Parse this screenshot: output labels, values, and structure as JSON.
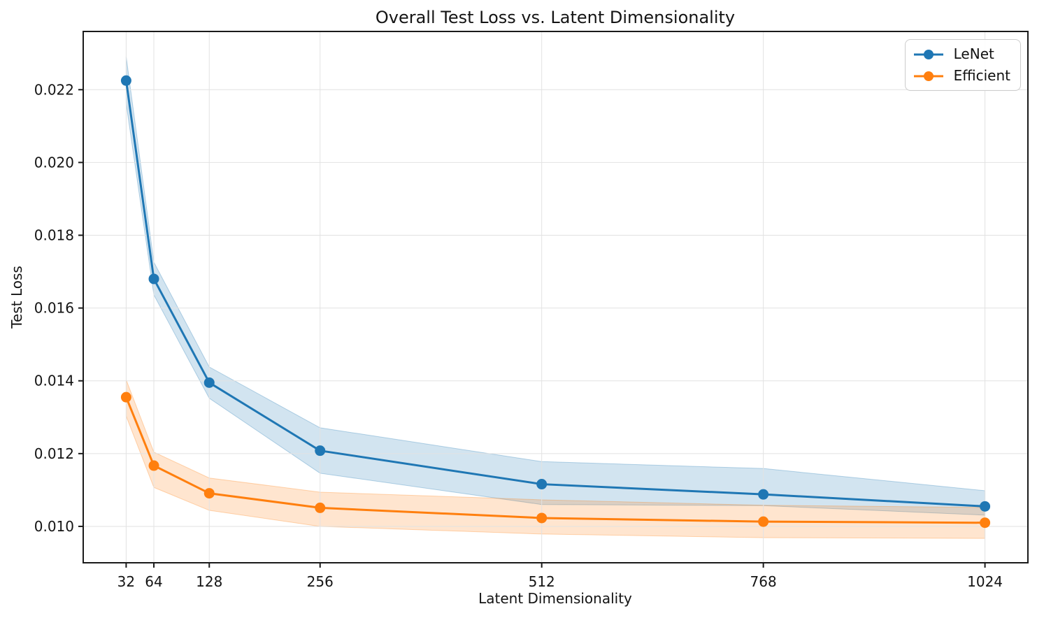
{
  "title": "Overall Test Loss vs. Latent Dimensionality",
  "axes": {
    "x_label": "Latent Dimensionality",
    "y_label": "Test Loss"
  },
  "legend": {
    "position": "upper right",
    "items": [
      "LeNet",
      "Efficient"
    ]
  },
  "chart_data": {
    "type": "line",
    "title": "Overall Test Loss vs. Latent Dimensionality",
    "xlabel": "Latent Dimensionality",
    "ylabel": "Test Loss",
    "x": [
      32,
      64,
      128,
      256,
      512,
      768,
      1024
    ],
    "x_ticks": [
      32,
      64,
      128,
      256,
      512,
      768,
      1024
    ],
    "y_ticks": [
      0.01,
      0.012,
      0.014,
      0.016,
      0.018,
      0.02,
      0.022
    ],
    "xlim": [
      -17.6,
      1073.6
    ],
    "ylim": [
      0.009,
      0.0236
    ],
    "grid": true,
    "band_alpha": 0.2,
    "legend_position": "upper right",
    "grid_color": "#e2e2e2",
    "spine_color": "#1a1a1a",
    "series": [
      {
        "name": "LeNet",
        "color": "#1f77b4",
        "values": [
          0.02225,
          0.0168,
          0.01395,
          0.01208,
          0.01116,
          0.01088,
          0.01055
        ],
        "band_lower": [
          0.02162,
          0.01636,
          0.01352,
          0.01146,
          0.0106,
          0.01057,
          0.01031
        ],
        "band_upper": [
          0.02291,
          0.01726,
          0.01438,
          0.01271,
          0.01178,
          0.01159,
          0.01098
        ]
      },
      {
        "name": "Efficient",
        "color": "#ff7f0e",
        "values": [
          0.01355,
          0.01167,
          0.01091,
          0.01051,
          0.01023,
          0.01013,
          0.0101
        ],
        "band_lower": [
          0.01303,
          0.01107,
          0.01044,
          0.01,
          0.00979,
          0.00969,
          0.00967
        ],
        "band_upper": [
          0.01403,
          0.01204,
          0.01133,
          0.01094,
          0.01073,
          0.01058,
          0.01052
        ]
      }
    ]
  }
}
